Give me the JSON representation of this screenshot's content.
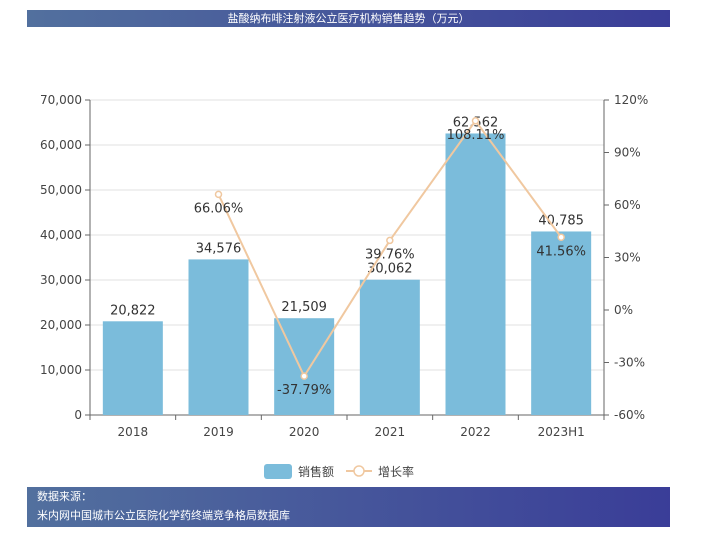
{
  "header": {
    "title": "盐酸纳布啡注射液公立医疗机构销售趋势（万元）"
  },
  "footer": {
    "label": "数据来源：",
    "source": "米内网中国城市公立医院化学药终端竞争格局数据库"
  },
  "colors": {
    "bar": "#7bbcdb",
    "line": "#f0c8a0"
  },
  "chart_data": {
    "type": "bar",
    "title": "盐酸纳布啡注射液公立医疗机构销售趋势（万元）",
    "categories": [
      "2018",
      "2019",
      "2020",
      "2021",
      "2022",
      "2023H1"
    ],
    "series": [
      {
        "name": "销售额",
        "type": "bar",
        "axis": "left",
        "values": [
          20822,
          34576,
          21509,
          30062,
          62562,
          40785
        ],
        "labels": [
          "20,822",
          "34,576",
          "21,509",
          "30,062",
          "62,562",
          "40,785"
        ]
      },
      {
        "name": "增长率",
        "type": "line",
        "axis": "right",
        "values": [
          null,
          66.06,
          -37.79,
          39.76,
          108.11,
          41.56
        ],
        "labels": [
          "",
          "66.06%",
          "-37.79%",
          "39.76%",
          "108.11%",
          "41.56%"
        ]
      }
    ],
    "yleft": {
      "lim": [
        0,
        70000
      ],
      "ticks": [
        "0",
        "10,000",
        "20,000",
        "30,000",
        "40,000",
        "50,000",
        "60,000",
        "70,000"
      ]
    },
    "yright": {
      "lim": [
        -60,
        120
      ],
      "ticks": [
        "-60%",
        "-30%",
        "0%",
        "30%",
        "60%",
        "90%",
        "120%"
      ]
    },
    "grid": true,
    "legend": "bottom"
  }
}
